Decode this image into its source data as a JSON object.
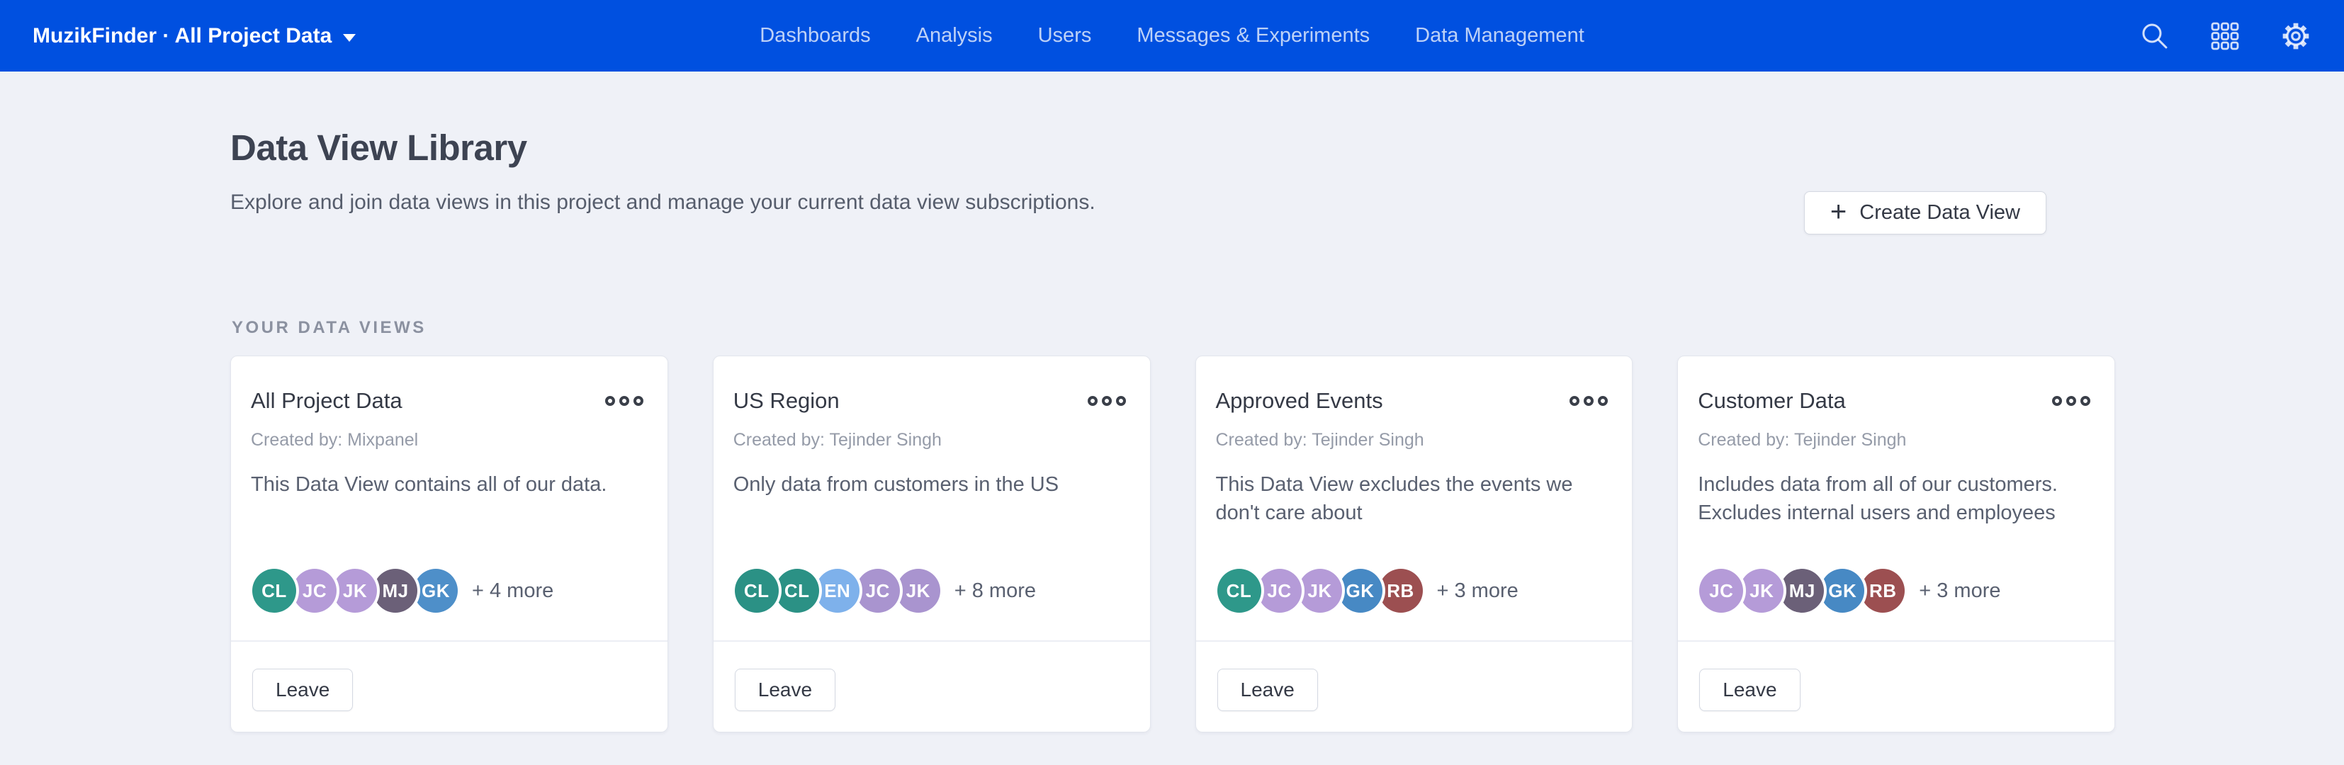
{
  "header": {
    "project_selector": {
      "label": "MuzikFinder · All Project Data"
    },
    "nav": [
      "Dashboards",
      "Analysis",
      "Users",
      "Messages & Experiments",
      "Data Management"
    ],
    "icons": [
      "search-icon",
      "apps-grid-icon",
      "settings-gear-icon"
    ],
    "bar_color": "#0050e0"
  },
  "page": {
    "title": "Data View Library",
    "subtitle": "Explore and join data views in this project and manage your current data view subscriptions.",
    "create_button": {
      "plus_glyph": "+",
      "label": "Create Data View"
    },
    "section_label": "YOUR DATA VIEWS"
  },
  "cards": [
    {
      "title": "All Project Data",
      "created_by": "Created by: Mixpanel",
      "description": "This Data View contains all of our data.",
      "members": [
        {
          "initials": "CL",
          "color": "#2e988a"
        },
        {
          "initials": "JC",
          "color": "#b59bd8"
        },
        {
          "initials": "JK",
          "color": "#b59bd8"
        },
        {
          "initials": "MJ",
          "color": "#6b6078"
        },
        {
          "initials": "GK",
          "color": "#4e8fc9"
        }
      ],
      "more_label": "+ 4 more",
      "leave_label": "Leave"
    },
    {
      "title": "US Region",
      "created_by": "Created by: Tejinder Singh",
      "description": "Only data from customers in the US",
      "members": [
        {
          "initials": "CL",
          "color": "#2b9185"
        },
        {
          "initials": "CL",
          "color": "#2b9185"
        },
        {
          "initials": "EN",
          "color": "#7eb1eb"
        },
        {
          "initials": "JC",
          "color": "#a994cf"
        },
        {
          "initials": "JK",
          "color": "#a994cf"
        }
      ],
      "more_label": "+ 8 more",
      "leave_label": "Leave"
    },
    {
      "title": "Approved Events",
      "created_by": "Created by: Tejinder Singh",
      "description": "This Data View excludes the events we don't care about",
      "members": [
        {
          "initials": "CL",
          "color": "#2e988a"
        },
        {
          "initials": "JC",
          "color": "#b59bd8"
        },
        {
          "initials": "JK",
          "color": "#b59bd8"
        },
        {
          "initials": "GK",
          "color": "#4789c4"
        },
        {
          "initials": "RB",
          "color": "#9c4f51"
        }
      ],
      "more_label": "+ 3 more",
      "leave_label": "Leave"
    },
    {
      "title": "Customer Data",
      "created_by": "Created by: Tejinder Singh",
      "description": "Includes data from all of our customers. Excludes internal users and employees",
      "members": [
        {
          "initials": "JC",
          "color": "#b59bd8"
        },
        {
          "initials": "JK",
          "color": "#b59bd8"
        },
        {
          "initials": "MJ",
          "color": "#6b6078"
        },
        {
          "initials": "GK",
          "color": "#4789c4"
        },
        {
          "initials": "RB",
          "color": "#9c4f51"
        }
      ],
      "more_label": "+ 3 more",
      "leave_label": "Leave"
    }
  ]
}
